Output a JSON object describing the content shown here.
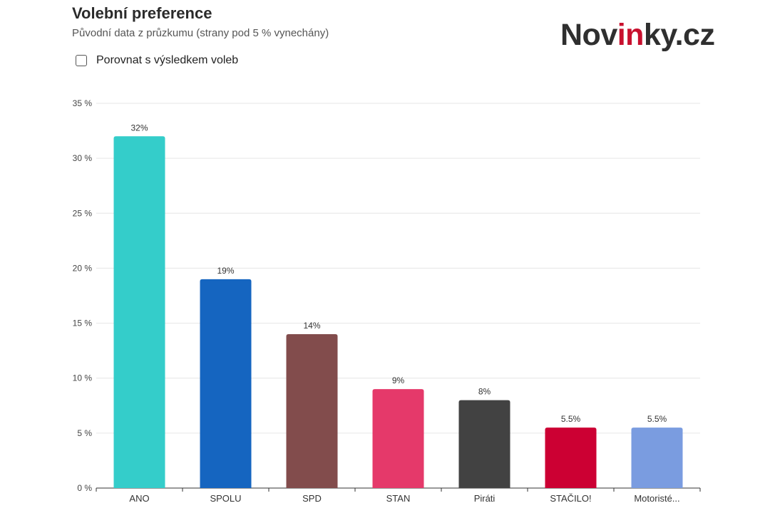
{
  "header": {
    "title": "Volební preference",
    "subtitle": "Původní data z průzkumu (strany pod 5 % vynechány)",
    "logo_main_a": "Nov",
    "logo_accent": "in",
    "logo_main_b": "ky.cz"
  },
  "controls": {
    "compare_label": "Porovnat s výsledkem voleb",
    "compare_checked": false
  },
  "chart_data": {
    "type": "bar",
    "categories": [
      "ANO",
      "SPOLU",
      "SPD",
      "STAN",
      "Piráti",
      "STAČILO!",
      "Motoristé..."
    ],
    "values": [
      32,
      19,
      14,
      9,
      8,
      5.5,
      5.5
    ],
    "data_labels": [
      "32%",
      "19%",
      "14%",
      "9%",
      "8%",
      "5.5%",
      "5.5%"
    ],
    "colors": [
      "#34cdca",
      "#1565c0",
      "#824c4c",
      "#e5396a",
      "#424242",
      "#cc0033",
      "#7a9ce0"
    ],
    "ylim": [
      0,
      35
    ],
    "yticks": [
      0,
      5,
      10,
      15,
      20,
      25,
      30,
      35
    ],
    "ytick_labels": [
      "0 %",
      "5 %",
      "10 %",
      "15 %",
      "20 %",
      "25 %",
      "30 %",
      "35 %"
    ],
    "grid": true,
    "legend": "none"
  }
}
